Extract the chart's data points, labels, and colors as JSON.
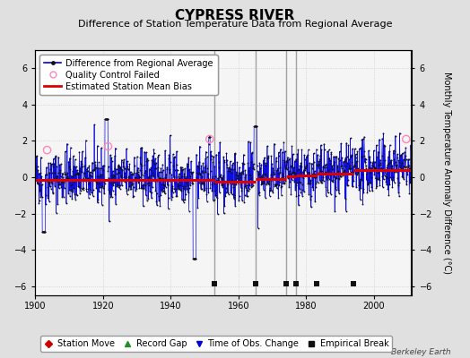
{
  "title": "CYPRESS RIVER",
  "subtitle": "Difference of Station Temperature Data from Regional Average",
  "ylabel": "Monthly Temperature Anomaly Difference (°C)",
  "xlim": [
    1900,
    2011
  ],
  "ylim": [
    -6.5,
    7.0
  ],
  "yticks": [
    -6,
    -4,
    -2,
    0,
    2,
    4,
    6
  ],
  "xticks": [
    1900,
    1920,
    1940,
    1960,
    1980,
    2000
  ],
  "seed": 42,
  "data_start_year": 1900,
  "data_end_year": 2011,
  "bias_segments": [
    {
      "start": 1900,
      "end": 1953,
      "value": -0.15
    },
    {
      "start": 1953,
      "end": 1965,
      "value": -0.22
    },
    {
      "start": 1965,
      "end": 1974,
      "value": -0.08
    },
    {
      "start": 1974,
      "end": 1977,
      "value": 0.05
    },
    {
      "start": 1977,
      "end": 1983,
      "value": 0.1
    },
    {
      "start": 1983,
      "end": 1994,
      "value": 0.22
    },
    {
      "start": 1994,
      "end": 2011,
      "value": 0.4
    }
  ],
  "vertical_lines": [
    1953,
    1965,
    1974,
    1977
  ],
  "empirical_breaks": [
    1953,
    1965,
    1974,
    1977,
    1983,
    1994
  ],
  "qc_failed_years": [
    1903.5,
    1921.5,
    1951.5,
    2009.5
  ],
  "qc_failed_values": [
    1.5,
    1.7,
    2.1,
    2.1
  ],
  "background_color": "#e0e0e0",
  "plot_bg_color": "#f5f5f5",
  "line_color": "#0000dd",
  "data_point_color": "#111111",
  "bias_color": "#dd0000",
  "vline_color": "#999999",
  "qc_color": "#ff88bb",
  "title_fontsize": 11,
  "subtitle_fontsize": 8,
  "tick_fontsize": 7,
  "ylabel_fontsize": 7,
  "legend_fontsize": 7,
  "watermark": "Berkeley Earth",
  "eb_y": -5.85
}
